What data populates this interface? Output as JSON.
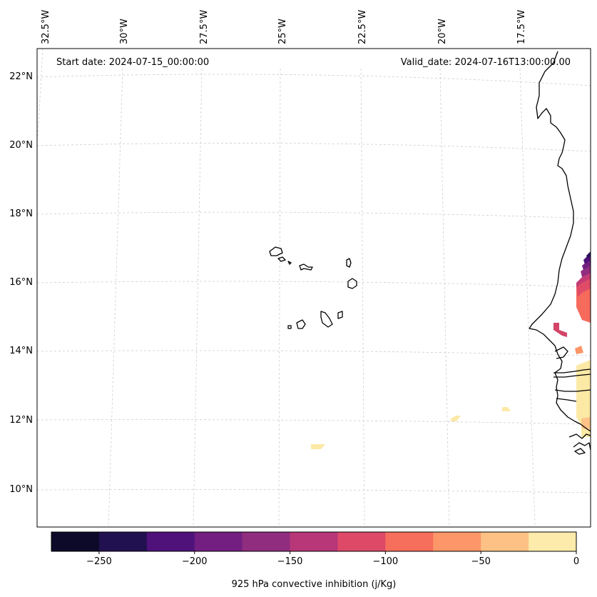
{
  "map": {
    "start_label": "Start date: 2024-07-15_00:00:00",
    "valid_label": "Valid_date: 2024-07-16T13:00:00.00",
    "lon_ticks": [
      "32.5°W",
      "30°W",
      "27.5°W",
      "25°W",
      "22.5°W",
      "20°W",
      "17.5°W"
    ],
    "lat_ticks": [
      "22°N",
      "20°N",
      "18°N",
      "16°N",
      "14°N",
      "12°N",
      "10°N"
    ],
    "field_colors": {
      "yellow": "#fce9a6",
      "peach": "#fec287",
      "orange": "#fd9567",
      "coral": "#f66b5c",
      "rose": "#e04c67",
      "magenta": "#c23b75",
      "purple": "#912d7f",
      "violet": "#721f81",
      "indigo": "#4f127b",
      "navy": "#2b1158",
      "black": "#0d0a29"
    }
  },
  "colorbar": {
    "title": "925 hPa convective inhibition (j/Kg)",
    "colors": [
      "#0d0a29",
      "#221150",
      "#4f127b",
      "#721f81",
      "#912d7f",
      "#b73779",
      "#de4968",
      "#f66e5c",
      "#fd9668",
      "#fec185",
      "#fcebaa"
    ],
    "ticks": [
      {
        "value": -250,
        "label": "−250"
      },
      {
        "value": -200,
        "label": "−200"
      },
      {
        "value": -150,
        "label": "−150"
      },
      {
        "value": -100,
        "label": "−100"
      },
      {
        "value": -50,
        "label": "−50"
      },
      {
        "value": 0,
        "label": "0"
      }
    ],
    "range": [
      -275,
      0
    ]
  }
}
